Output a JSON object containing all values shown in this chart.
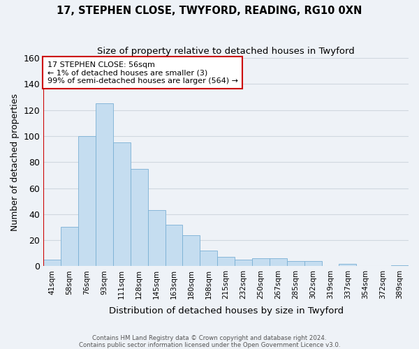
{
  "title": "17, STEPHEN CLOSE, TWYFORD, READING, RG10 0XN",
  "subtitle": "Size of property relative to detached houses in Twyford",
  "xlabel": "Distribution of detached houses by size in Twyford",
  "ylabel": "Number of detached properties",
  "bar_labels": [
    "41sqm",
    "58sqm",
    "76sqm",
    "93sqm",
    "111sqm",
    "128sqm",
    "145sqm",
    "163sqm",
    "180sqm",
    "198sqm",
    "215sqm",
    "232sqm",
    "250sqm",
    "267sqm",
    "285sqm",
    "302sqm",
    "319sqm",
    "337sqm",
    "354sqm",
    "372sqm",
    "389sqm"
  ],
  "bar_values": [
    5,
    30,
    100,
    125,
    95,
    75,
    43,
    32,
    24,
    12,
    7,
    5,
    6,
    6,
    4,
    4,
    0,
    2,
    0,
    0,
    1
  ],
  "bar_color": "#c5ddf0",
  "bar_edge_color": "#7ab0d4",
  "highlight_bar_index": 0,
  "highlight_edge_color": "#cc0000",
  "ylim": [
    0,
    160
  ],
  "yticks": [
    0,
    20,
    40,
    60,
    80,
    100,
    120,
    140,
    160
  ],
  "annotation_title": "17 STEPHEN CLOSE: 56sqm",
  "annotation_line1": "← 1% of detached houses are smaller (3)",
  "annotation_line2": "99% of semi-detached houses are larger (564) →",
  "annotation_box_edge_color": "#cc0000",
  "footer_line1": "Contains HM Land Registry data © Crown copyright and database right 2024.",
  "footer_line2": "Contains public sector information licensed under the Open Government Licence v3.0.",
  "grid_color": "#d0d8e0",
  "bg_color": "#eef2f7"
}
